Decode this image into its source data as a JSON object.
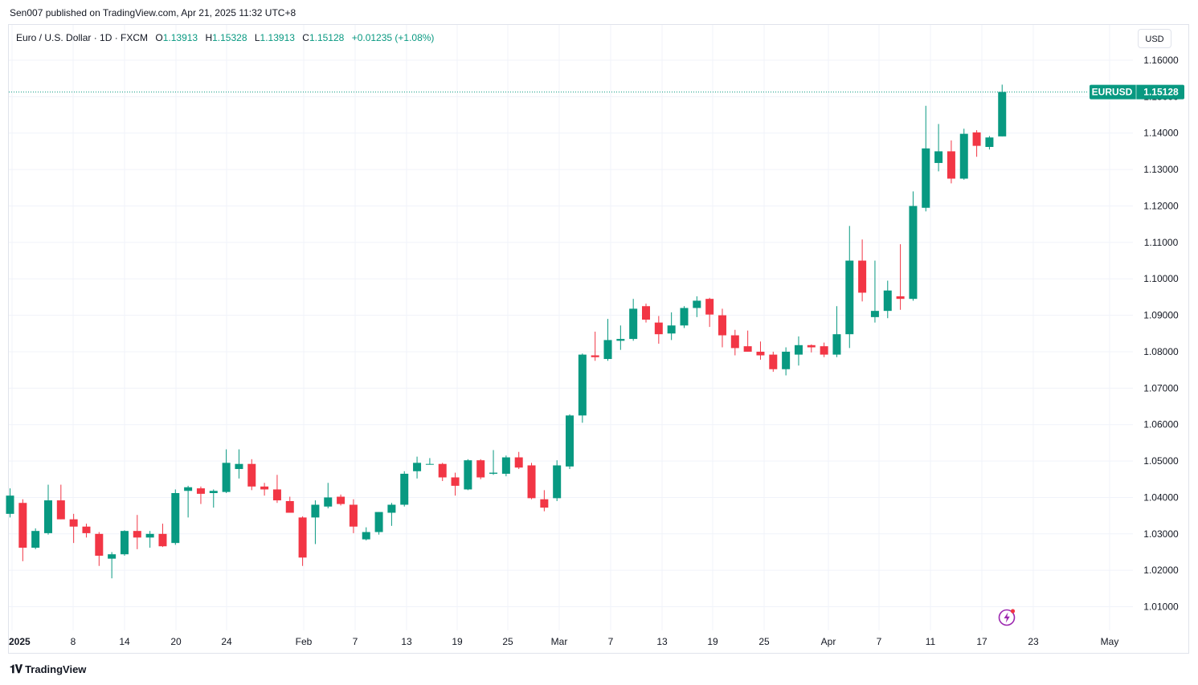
{
  "header": {
    "published_text": "Sen007 published on TradingView.com, Apr 21, 2025 11:32 UTC+8"
  },
  "legend": {
    "symbol_text": "Euro / U.S. Dollar · 1D · FXCM",
    "open_label": "O",
    "open_value": "1.13913",
    "high_label": "H",
    "high_value": "1.15328",
    "low_label": "L",
    "low_value": "1.13913",
    "close_label": "C",
    "close_value": "1.15128",
    "change_text": "+0.01235 (+1.08%)"
  },
  "currency_button": "USD",
  "price_tag": {
    "symbol": "EURUSD",
    "value": "1.15128"
  },
  "footer": {
    "brand": "TradingView"
  },
  "colors": {
    "up": "#089981",
    "down": "#f23645",
    "grid": "#f0f3fa",
    "text": "#131722"
  },
  "chart_data": {
    "type": "candlestick",
    "title": "Euro / U.S. Dollar · 1D · FXCM",
    "ylim": [
      1.005,
      1.165
    ],
    "y_ticks": [
      "1.16000",
      "1.15000",
      "1.14000",
      "1.13000",
      "1.12000",
      "1.11000",
      "1.10000",
      "1.09000",
      "1.08000",
      "1.07000",
      "1.06000",
      "1.05000",
      "1.04000",
      "1.03000",
      "1.02000",
      "1.01000"
    ],
    "x_ticks": [
      {
        "label": "2025",
        "bold": true
      },
      {
        "label": "8"
      },
      {
        "label": "14"
      },
      {
        "label": "20"
      },
      {
        "label": "24"
      },
      {
        "label": "Feb"
      },
      {
        "label": "7"
      },
      {
        "label": "13"
      },
      {
        "label": "19"
      },
      {
        "label": "25"
      },
      {
        "label": "Mar"
      },
      {
        "label": "7"
      },
      {
        "label": "13"
      },
      {
        "label": "19"
      },
      {
        "label": "25"
      },
      {
        "label": "Apr"
      },
      {
        "label": "7"
      },
      {
        "label": "11"
      },
      {
        "label": "17"
      },
      {
        "label": "23"
      },
      {
        "label": "May"
      }
    ],
    "last_price": 1.15128,
    "candles": [
      {
        "o": 1.0355,
        "h": 1.0425,
        "l": 1.0345,
        "c": 1.0405
      },
      {
        "o": 1.0385,
        "h": 1.0395,
        "l": 1.0225,
        "c": 1.0262
      },
      {
        "o": 1.0262,
        "h": 1.0315,
        "l": 1.0258,
        "c": 1.0308
      },
      {
        "o": 1.0302,
        "h": 1.0435,
        "l": 1.0298,
        "c": 1.0392
      },
      {
        "o": 1.0392,
        "h": 1.0435,
        "l": 1.034,
        "c": 1.034
      },
      {
        "o": 1.034,
        "h": 1.0355,
        "l": 1.0275,
        "c": 1.032
      },
      {
        "o": 1.032,
        "h": 1.0328,
        "l": 1.029,
        "c": 1.0302
      },
      {
        "o": 1.03,
        "h": 1.0305,
        "l": 1.0212,
        "c": 1.024
      },
      {
        "o": 1.0232,
        "h": 1.025,
        "l": 1.0178,
        "c": 1.0244
      },
      {
        "o": 1.0244,
        "h": 1.031,
        "l": 1.024,
        "c": 1.0308
      },
      {
        "o": 1.0308,
        "h": 1.0352,
        "l": 1.0258,
        "c": 1.029
      },
      {
        "o": 1.029,
        "h": 1.0308,
        "l": 1.0262,
        "c": 1.03
      },
      {
        "o": 1.03,
        "h": 1.0328,
        "l": 1.0264,
        "c": 1.0266
      },
      {
        "o": 1.0275,
        "h": 1.0422,
        "l": 1.027,
        "c": 1.0412
      },
      {
        "o": 1.0418,
        "h": 1.0432,
        "l": 1.0345,
        "c": 1.0428
      },
      {
        "o": 1.0425,
        "h": 1.043,
        "l": 1.0382,
        "c": 1.041
      },
      {
        "o": 1.0412,
        "h": 1.0422,
        "l": 1.0372,
        "c": 1.0418
      },
      {
        "o": 1.0415,
        "h": 1.0532,
        "l": 1.0412,
        "c": 1.0495
      },
      {
        "o": 1.0478,
        "h": 1.0532,
        "l": 1.0452,
        "c": 1.0492
      },
      {
        "o": 1.0492,
        "h": 1.0505,
        "l": 1.042,
        "c": 1.043
      },
      {
        "o": 1.043,
        "h": 1.044,
        "l": 1.0405,
        "c": 1.0422
      },
      {
        "o": 1.0422,
        "h": 1.0462,
        "l": 1.0385,
        "c": 1.0392
      },
      {
        "o": 1.039,
        "h": 1.0402,
        "l": 1.0358,
        "c": 1.0358
      },
      {
        "o": 1.0345,
        "h": 1.0348,
        "l": 1.0212,
        "c": 1.0235
      },
      {
        "o": 1.0345,
        "h": 1.0392,
        "l": 1.0272,
        "c": 1.038
      },
      {
        "o": 1.0375,
        "h": 1.044,
        "l": 1.037,
        "c": 1.04
      },
      {
        "o": 1.0402,
        "h": 1.0408,
        "l": 1.0378,
        "c": 1.0382
      },
      {
        "o": 1.038,
        "h": 1.0395,
        "l": 1.0302,
        "c": 1.032
      },
      {
        "o": 1.0285,
        "h": 1.0318,
        "l": 1.0282,
        "c": 1.0305
      },
      {
        "o": 1.0305,
        "h": 1.036,
        "l": 1.0298,
        "c": 1.036
      },
      {
        "o": 1.0358,
        "h": 1.0385,
        "l": 1.0322,
        "c": 1.038
      },
      {
        "o": 1.038,
        "h": 1.0472,
        "l": 1.0375,
        "c": 1.0465
      },
      {
        "o": 1.0472,
        "h": 1.0512,
        "l": 1.0452,
        "c": 1.0495
      },
      {
        "o": 1.0492,
        "h": 1.0508,
        "l": 1.049,
        "c": 1.0492
      },
      {
        "o": 1.0492,
        "h": 1.0495,
        "l": 1.0445,
        "c": 1.0455
      },
      {
        "o": 1.0455,
        "h": 1.0468,
        "l": 1.0405,
        "c": 1.0432
      },
      {
        "o": 1.0422,
        "h": 1.0505,
        "l": 1.042,
        "c": 1.0502
      },
      {
        "o": 1.0502,
        "h": 1.0505,
        "l": 1.045,
        "c": 1.0455
      },
      {
        "o": 1.0465,
        "h": 1.053,
        "l": 1.0462,
        "c": 1.0468
      },
      {
        "o": 1.0465,
        "h": 1.0515,
        "l": 1.0458,
        "c": 1.051
      },
      {
        "o": 1.051,
        "h": 1.0525,
        "l": 1.0478,
        "c": 1.0482
      },
      {
        "o": 1.0488,
        "h": 1.0495,
        "l": 1.0395,
        "c": 1.0398
      },
      {
        "o": 1.0395,
        "h": 1.042,
        "l": 1.0362,
        "c": 1.0372
      },
      {
        "o": 1.0398,
        "h": 1.0502,
        "l": 1.039,
        "c": 1.0488
      },
      {
        "o": 1.0485,
        "h": 1.0628,
        "l": 1.0478,
        "c": 1.0625
      },
      {
        "o": 1.0625,
        "h": 1.0795,
        "l": 1.0605,
        "c": 1.0792
      },
      {
        "o": 1.079,
        "h": 1.0855,
        "l": 1.0775,
        "c": 1.0785
      },
      {
        "o": 1.078,
        "h": 1.089,
        "l": 1.0775,
        "c": 1.0832
      },
      {
        "o": 1.083,
        "h": 1.0872,
        "l": 1.0805,
        "c": 1.0835
      },
      {
        "o": 1.0835,
        "h": 1.0945,
        "l": 1.083,
        "c": 1.0918
      },
      {
        "o": 1.0925,
        "h": 1.0932,
        "l": 1.088,
        "c": 1.0888
      },
      {
        "o": 1.088,
        "h": 1.0898,
        "l": 1.0822,
        "c": 1.0848
      },
      {
        "o": 1.085,
        "h": 1.0908,
        "l": 1.0832,
        "c": 1.0872
      },
      {
        "o": 1.0872,
        "h": 1.0925,
        "l": 1.0865,
        "c": 1.092
      },
      {
        "o": 1.092,
        "h": 1.0952,
        "l": 1.0895,
        "c": 1.094
      },
      {
        "o": 1.0945,
        "h": 1.0948,
        "l": 1.0868,
        "c": 1.0902
      },
      {
        "o": 1.09,
        "h": 1.0918,
        "l": 1.0812,
        "c": 1.0845
      },
      {
        "o": 1.0845,
        "h": 1.086,
        "l": 1.079,
        "c": 1.081
      },
      {
        "o": 1.0815,
        "h": 1.0858,
        "l": 1.08,
        "c": 1.08
      },
      {
        "o": 1.08,
        "h": 1.0828,
        "l": 1.0778,
        "c": 1.079
      },
      {
        "o": 1.0792,
        "h": 1.08,
        "l": 1.0745,
        "c": 1.0752
      },
      {
        "o": 1.0752,
        "h": 1.0812,
        "l": 1.0735,
        "c": 1.08
      },
      {
        "o": 1.0792,
        "h": 1.0842,
        "l": 1.0762,
        "c": 1.0818
      },
      {
        "o": 1.0818,
        "h": 1.082,
        "l": 1.0798,
        "c": 1.0812
      },
      {
        "o": 1.0815,
        "h": 1.0825,
        "l": 1.0785,
        "c": 1.0792
      },
      {
        "o": 1.0792,
        "h": 1.0925,
        "l": 1.0785,
        "c": 1.0848
      },
      {
        "o": 1.0848,
        "h": 1.1145,
        "l": 1.081,
        "c": 1.105
      },
      {
        "o": 1.105,
        "h": 1.1108,
        "l": 1.0938,
        "c": 1.0962
      },
      {
        "o": 1.0895,
        "h": 1.105,
        "l": 1.088,
        "c": 1.0912
      },
      {
        "o": 1.0912,
        "h": 1.0995,
        "l": 1.0892,
        "c": 1.0968
      },
      {
        "o": 1.0952,
        "h": 1.1095,
        "l": 1.0915,
        "c": 1.0945
      },
      {
        "o": 1.0945,
        "h": 1.124,
        "l": 1.094,
        "c": 1.12
      },
      {
        "o": 1.1195,
        "h": 1.1475,
        "l": 1.1185,
        "c": 1.1358
      },
      {
        "o": 1.1318,
        "h": 1.1425,
        "l": 1.1295,
        "c": 1.135
      },
      {
        "o": 1.135,
        "h": 1.138,
        "l": 1.1262,
        "c": 1.1275
      },
      {
        "o": 1.1275,
        "h": 1.1412,
        "l": 1.1272,
        "c": 1.1398
      },
      {
        "o": 1.1402,
        "h": 1.1408,
        "l": 1.1335,
        "c": 1.1365
      },
      {
        "o": 1.1362,
        "h": 1.1392,
        "l": 1.1355,
        "c": 1.1388
      },
      {
        "o": 1.1391,
        "h": 1.1533,
        "l": 1.1391,
        "c": 1.1513
      }
    ]
  }
}
